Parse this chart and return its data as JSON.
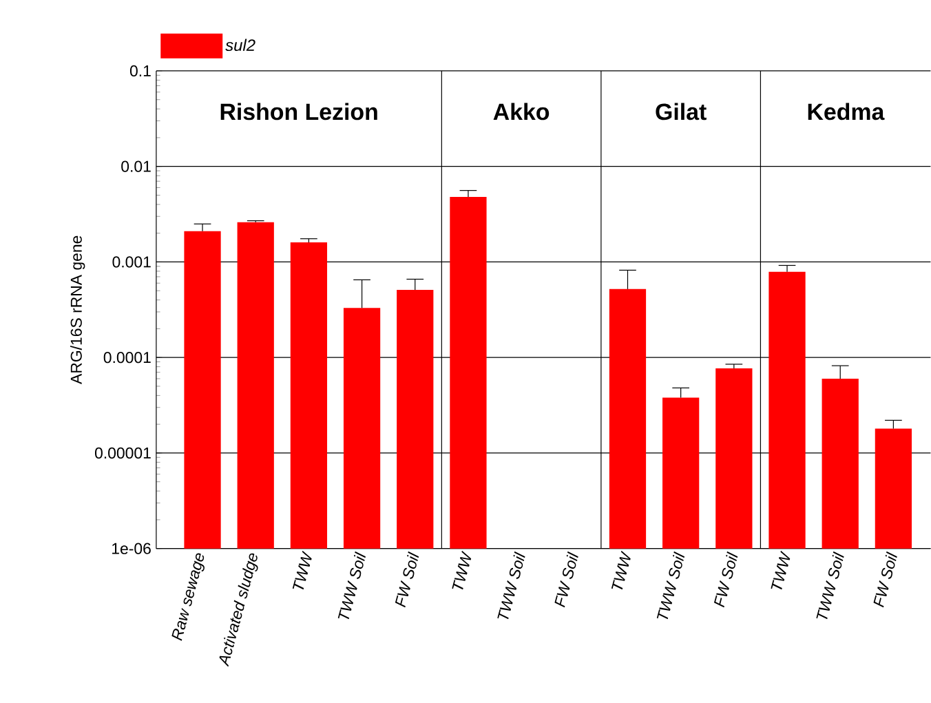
{
  "chart_data": {
    "type": "bar",
    "categories": [
      "Raw  sewage",
      "Activated  sludge",
      "TWW",
      "TWW Soil",
      "FW Soil",
      "TWW",
      "TWW Soil",
      "FW Soil",
      "TWW",
      "TWW Soil",
      "FW Soil",
      "TWW",
      "TWW Soil",
      "FW Soil"
    ],
    "series": [
      {
        "name": "sul2",
        "color": "#ff0000",
        "values": [
          0.0021,
          0.0026,
          0.0016,
          0.00033,
          0.00051,
          0.0048,
          null,
          null,
          0.00052,
          3.8e-05,
          7.7e-05,
          0.00079,
          6e-05,
          1.8e-05
        ],
        "errors": [
          [
            0.0021,
            0.0025
          ],
          [
            0.0026,
            0.0027
          ],
          [
            0.0016,
            0.00175
          ],
          [
            0.00033,
            0.00065
          ],
          [
            0.00051,
            0.00066
          ],
          [
            0.0048,
            0.0056
          ],
          null,
          null,
          [
            0.00052,
            0.00082
          ],
          [
            3.8e-05,
            4.8e-05
          ],
          [
            7.7e-05,
            8.5e-05
          ],
          [
            0.00079,
            0.00092
          ],
          [
            6e-05,
            8.2e-05
          ],
          [
            1.8e-05,
            2.2e-05
          ]
        ]
      }
    ],
    "ylabel": "ARG/16S rRNA gene",
    "log": "y",
    "ylim": [
      1e-06,
      0.1
    ],
    "yticks": [
      {
        "value": 1e-06,
        "label": "1e-06"
      },
      {
        "value": 1e-05,
        "label": "0.00001"
      },
      {
        "value": 0.0001,
        "label": "0.0001"
      },
      {
        "value": 0.001,
        "label": "0.001"
      },
      {
        "value": 0.01,
        "label": "0.01"
      },
      {
        "value": 0.1,
        "label": "0.1"
      }
    ],
    "grid": "y",
    "legend": "top left",
    "annotations": [
      "Rishon Lezion",
      "Akko",
      "Gilat",
      "Kedma"
    ]
  }
}
